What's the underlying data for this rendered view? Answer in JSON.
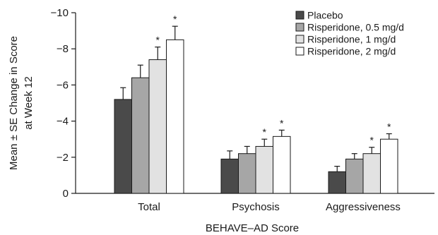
{
  "chart_data": {
    "type": "bar",
    "categories": [
      "Total",
      "Psychosis",
      "Aggressiveness"
    ],
    "series": [
      {
        "name": "Placebo",
        "color": "#4a4a4a",
        "values": [
          -5.2,
          -1.9,
          -1.2
        ],
        "errors": [
          0.65,
          0.45,
          0.3
        ],
        "significant": [
          false,
          false,
          false
        ]
      },
      {
        "name": "Risperidone, 0.5 mg/d",
        "color": "#a6a6a6",
        "values": [
          -6.4,
          -2.2,
          -1.9
        ],
        "errors": [
          0.7,
          0.4,
          0.3
        ],
        "significant": [
          false,
          false,
          false
        ]
      },
      {
        "name": "Risperidone, 1 mg/d",
        "color": "#e2e2e2",
        "values": [
          -7.4,
          -2.6,
          -2.2
        ],
        "errors": [
          0.7,
          0.4,
          0.35
        ],
        "significant": [
          true,
          true,
          true
        ]
      },
      {
        "name": "Risperidone, 2 mg/d",
        "color": "#ffffff",
        "values": [
          -8.5,
          -3.15,
          -3.0
        ],
        "errors": [
          0.75,
          0.35,
          0.3
        ],
        "significant": [
          true,
          true,
          true
        ]
      }
    ],
    "xlabel": "BEHAVE–AD Score",
    "ylabel_line1": "Mean ± SE Change in Score",
    "ylabel_line2": "at Week 12",
    "ylim": [
      0,
      -10
    ],
    "yticks": [
      0,
      -2,
      -4,
      -6,
      -8,
      -10
    ],
    "ytick_labels": [
      "0",
      "−2",
      "−4",
      "−6",
      "−8",
      "−10"
    ],
    "significance_marker": "*",
    "legend_position": "top-right",
    "grid": false
  }
}
